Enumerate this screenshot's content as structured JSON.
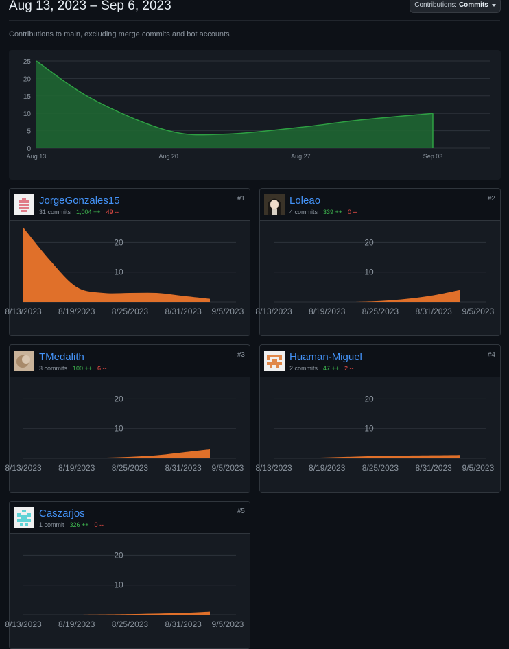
{
  "header": {
    "date_range": "Aug 13, 2023 – Sep 6, 2023",
    "contributions_label": "Contributions:",
    "contributions_value": "Commits",
    "subtitle": "Contributions to main, excluding merge commits and bot accounts"
  },
  "colors": {
    "main_area": "#1f6a32",
    "main_line": "#2ea043",
    "user_area": "#e0702a",
    "additions": "#3fb950",
    "deletions": "#f85149",
    "link": "#4493f8"
  },
  "chart_data": [
    {
      "type": "area",
      "x": [
        "Aug 13",
        "Aug 16",
        "Aug 20",
        "Aug 23",
        "Aug 27",
        "Aug 30",
        "Sep 03"
      ],
      "values": [
        25,
        14,
        5,
        4,
        6,
        8,
        10
      ],
      "y_ticks": [
        "0",
        "5",
        "10",
        "15",
        "20",
        "25"
      ],
      "x_ticks": [
        "Aug 13",
        "Aug 20",
        "Aug 27",
        "Sep 03"
      ],
      "ylim": [
        0,
        25
      ],
      "grid": true
    }
  ],
  "contributors": [
    {
      "rank": "#1",
      "login": "JorgeGonzales15",
      "commits": "31 commits",
      "additions": "1,004 ++",
      "deletions": "49 --",
      "avatar": "identicon-red-icon",
      "chart": {
        "type": "area",
        "x": [
          "8/13/2023",
          "8/16/2023",
          "8/19/2023",
          "8/22/2023",
          "8/25/2023",
          "8/28/2023",
          "8/31/2023",
          "9/3/2023"
        ],
        "values": [
          25,
          14,
          5,
          3,
          3,
          3,
          2,
          1
        ],
        "ylim": [
          0,
          25
        ],
        "y_ticks": [
          "10",
          "20"
        ],
        "x_ticks": [
          "8/13/2023",
          "8/19/2023",
          "8/25/2023",
          "8/31/2023",
          "9/5/2023"
        ]
      }
    },
    {
      "rank": "#2",
      "login": "Loleao",
      "commits": "4 commits",
      "additions": "339 ++",
      "deletions": "0 --",
      "avatar": "anime-avatar-icon",
      "chart": {
        "type": "area",
        "x": [
          "8/22/2023",
          "8/25/2023",
          "8/28/2023",
          "8/31/2023",
          "9/3/2023"
        ],
        "values": [
          0,
          0.3,
          1,
          2.2,
          4
        ],
        "ylim": [
          0,
          25
        ],
        "y_ticks": [
          "10",
          "20"
        ],
        "x_ticks": [
          "8/13/2023",
          "8/19/2023",
          "8/25/2023",
          "8/31/2023",
          "9/5/2023"
        ]
      }
    },
    {
      "rank": "#3",
      "login": "TMedalith",
      "commits": "3 commits",
      "additions": "100 ++",
      "deletions": "6 --",
      "avatar": "photo-avatar-icon",
      "chart": {
        "type": "area",
        "x": [
          "8/19/2023",
          "8/22/2023",
          "8/25/2023",
          "8/28/2023",
          "8/31/2023",
          "9/3/2023"
        ],
        "values": [
          0,
          0.2,
          0.5,
          1,
          2,
          3
        ],
        "ylim": [
          0,
          25
        ],
        "y_ticks": [
          "10",
          "20"
        ],
        "x_ticks": [
          "8/13/2023",
          "8/19/2023",
          "8/25/2023",
          "8/31/2023",
          "9/5/2023"
        ]
      }
    },
    {
      "rank": "#4",
      "login": "Huaman-Miguel",
      "commits": "2 commits",
      "additions": "47 ++",
      "deletions": "2 --",
      "avatar": "identicon-orange-icon",
      "chart": {
        "type": "area",
        "x": [
          "8/13/2023",
          "8/19/2023",
          "8/25/2023",
          "8/31/2023",
          "9/3/2023"
        ],
        "values": [
          0,
          0.3,
          0.8,
          1,
          1.1
        ],
        "ylim": [
          0,
          25
        ],
        "y_ticks": [
          "10",
          "20"
        ],
        "x_ticks": [
          "8/13/2023",
          "8/19/2023",
          "8/25/2023",
          "8/31/2023",
          "9/5/2023"
        ]
      }
    },
    {
      "rank": "#5",
      "login": "Caszarjos",
      "commits": "1 commit",
      "additions": "326 ++",
      "deletions": "0 --",
      "avatar": "identicon-teal-icon",
      "chart": {
        "type": "area",
        "x": [
          "8/19/2023",
          "8/25/2023",
          "8/31/2023",
          "9/3/2023"
        ],
        "values": [
          0,
          0.2,
          0.6,
          1
        ],
        "ylim": [
          0,
          25
        ],
        "y_ticks": [
          "10",
          "20"
        ],
        "x_ticks": [
          "8/13/2023",
          "8/19/2023",
          "8/25/2023",
          "8/31/2023",
          "9/5/2023"
        ]
      }
    }
  ]
}
